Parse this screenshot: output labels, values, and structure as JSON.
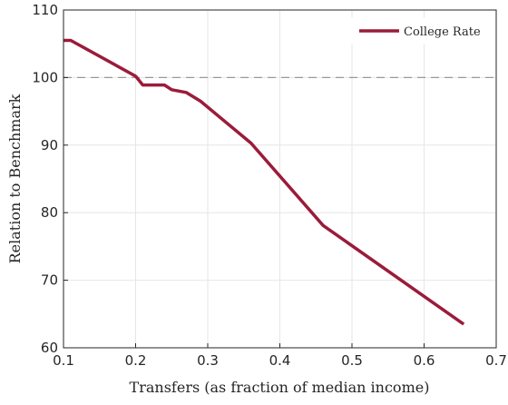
{
  "chart_data": {
    "type": "line",
    "title": "",
    "xlabel": "Transfers (as fraction of median income)",
    "ylabel": "Relation to Benchmark",
    "xlim": [
      0.1,
      0.7
    ],
    "ylim": [
      60,
      110
    ],
    "x_ticks": [
      0.1,
      0.2,
      0.3,
      0.4,
      0.5,
      0.6,
      0.7
    ],
    "x_tick_labels": [
      "0.1",
      "0.2",
      "0.3",
      "0.4",
      "0.5",
      "0.6",
      "0.7"
    ],
    "y_ticks": [
      60,
      70,
      80,
      90,
      100,
      110
    ],
    "y_tick_labels": [
      "60",
      "70",
      "80",
      "90",
      "100",
      "110"
    ],
    "grid": true,
    "legend_position": "top-right",
    "reference_line": {
      "y": 100,
      "style": "dashed",
      "color": "#999999"
    },
    "series": [
      {
        "name": "College Rate",
        "color": "#9b1b3a",
        "x": [
          0.1,
          0.11,
          0.2,
          0.21,
          0.24,
          0.25,
          0.27,
          0.29,
          0.36,
          0.46,
          0.655
        ],
        "y": [
          105.5,
          105.5,
          100.2,
          98.9,
          98.9,
          98.2,
          97.8,
          96.5,
          90.3,
          78.1,
          63.5
        ]
      }
    ]
  }
}
